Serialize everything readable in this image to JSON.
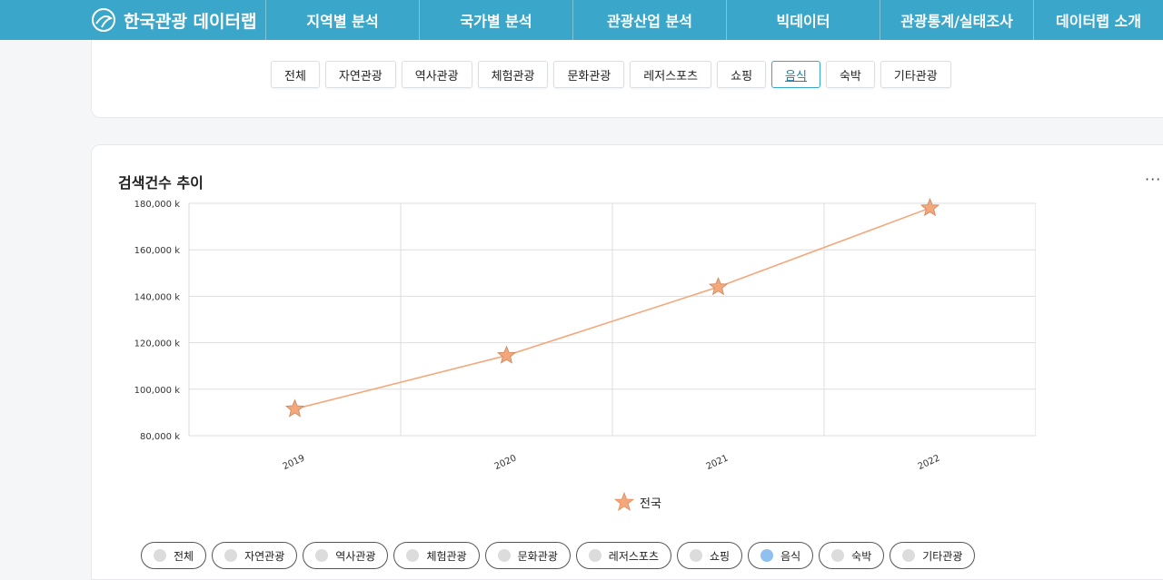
{
  "header": {
    "brand": "한국관광 데이터랩",
    "nav": [
      "지역별 분석",
      "국가별 분석",
      "관광산업 분석",
      "빅데이터",
      "관광통계/실태조사",
      "데이터랩 소개"
    ]
  },
  "categories": {
    "tabs": [
      "전체",
      "자연관광",
      "역사관광",
      "체험관광",
      "문화관광",
      "레저스포츠",
      "쇼핑",
      "음식",
      "숙박",
      "기타관광"
    ],
    "active": "음식"
  },
  "chart_section": {
    "title": "검색건수 추이",
    "more": "···"
  },
  "chart_data": {
    "type": "line",
    "x": [
      "2019",
      "2020",
      "2021",
      "2022"
    ],
    "series": [
      {
        "name": "전국",
        "values": [
          91500,
          114500,
          144000,
          178000
        ],
        "color": "#f4a77a",
        "marker": "star"
      }
    ],
    "yticks": [
      "80,000 k",
      "100,000 k",
      "120,000 k",
      "140,000 k",
      "160,000 k",
      "180,000 k"
    ],
    "ylim": [
      80000,
      180000
    ],
    "grid": true,
    "legend": "bottom-center"
  },
  "filters": {
    "pills": [
      "전체",
      "자연관광",
      "역사관광",
      "체험관광",
      "문화관광",
      "레저스포츠",
      "쇼핑",
      "음식",
      "숙박",
      "기타관광"
    ],
    "active": "음식",
    "active_color": "#8fc0f0"
  }
}
